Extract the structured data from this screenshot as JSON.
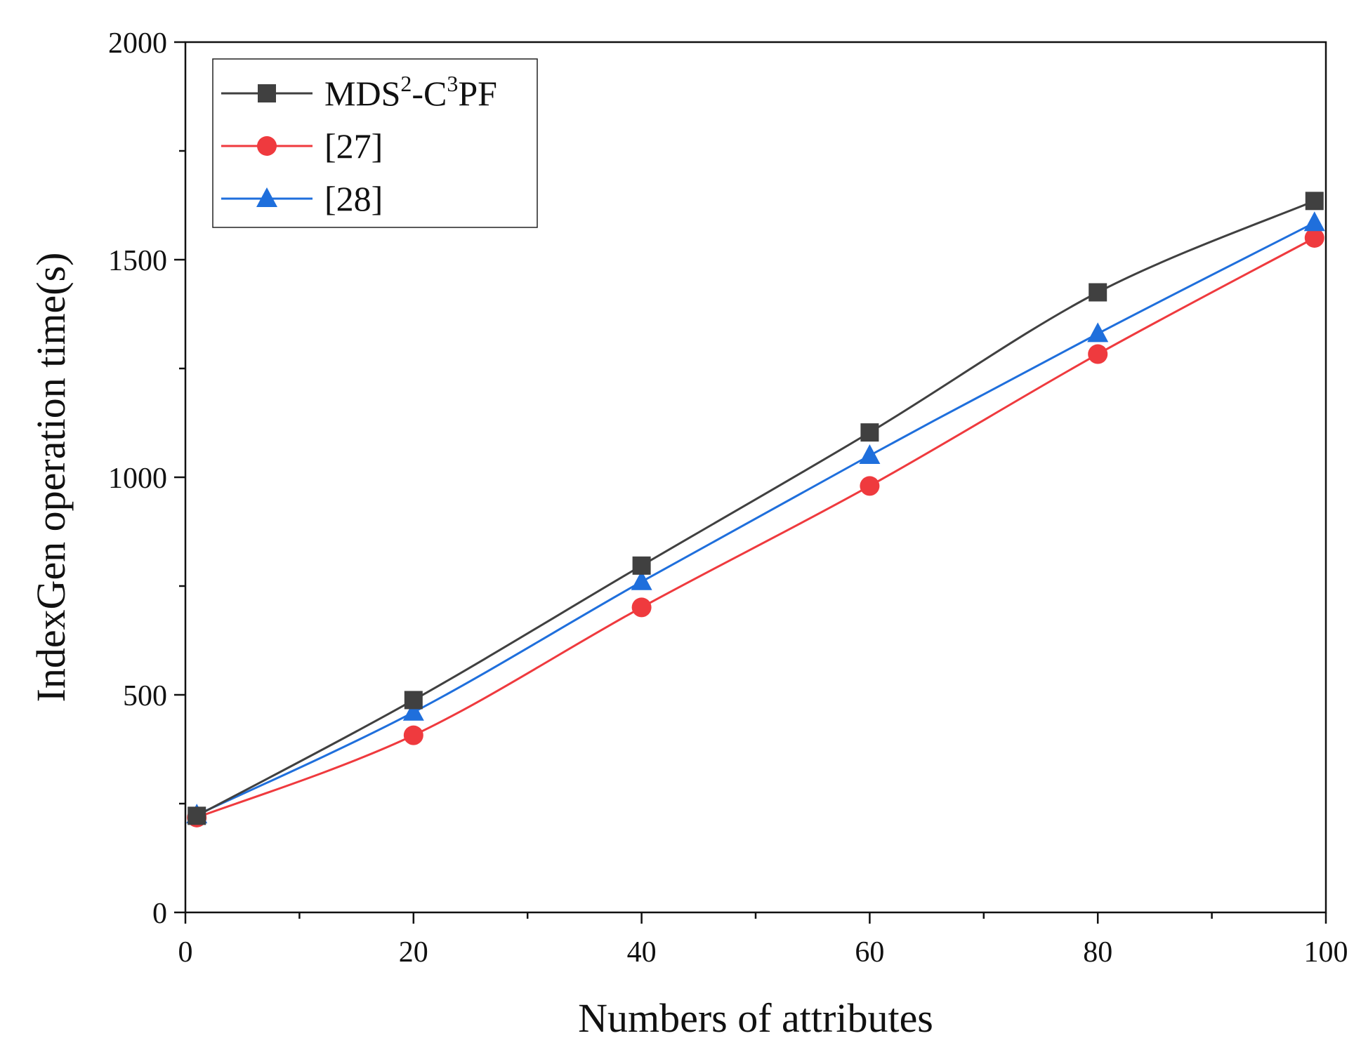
{
  "chart_data": {
    "type": "line",
    "title": "",
    "xlabel": "Numbers of attributes",
    "ylabel": "IndexGen operation time(s)",
    "xlim": [
      0,
      100
    ],
    "ylim": [
      0,
      2000
    ],
    "x_ticks": [
      0,
      20,
      40,
      60,
      80,
      100
    ],
    "x_tick_labels": [
      "0",
      "20",
      "40",
      "60",
      "80",
      "100"
    ],
    "y_ticks": [
      0,
      500,
      1000,
      1500,
      2000
    ],
    "y_tick_labels": [
      "0",
      "500",
      "1000",
      "1500",
      "2000"
    ],
    "grid": false,
    "legend_position": "top-left",
    "x": [
      1,
      20,
      40,
      60,
      80,
      99
    ],
    "series": [
      {
        "name": "MDS2-C3PF",
        "legend": {
          "base": "MDS",
          "sup1": "2",
          "mid": "-C",
          "sup2": "3",
          "tail": "PF"
        },
        "color": "#404040",
        "marker": "square",
        "values": [
          222,
          488,
          797,
          1103,
          1425,
          1635
        ]
      },
      {
        "name": "[27]",
        "legend": {
          "base": "[27]"
        },
        "color": "#ef3a3e",
        "marker": "circle",
        "values": [
          218,
          407,
          701,
          980,
          1283,
          1550
        ]
      },
      {
        "name": "[28]",
        "legend": {
          "base": "[28]"
        },
        "color": "#1f6fdc",
        "marker": "triangle",
        "values": [
          224,
          460,
          760,
          1050,
          1330,
          1585
        ]
      }
    ]
  }
}
